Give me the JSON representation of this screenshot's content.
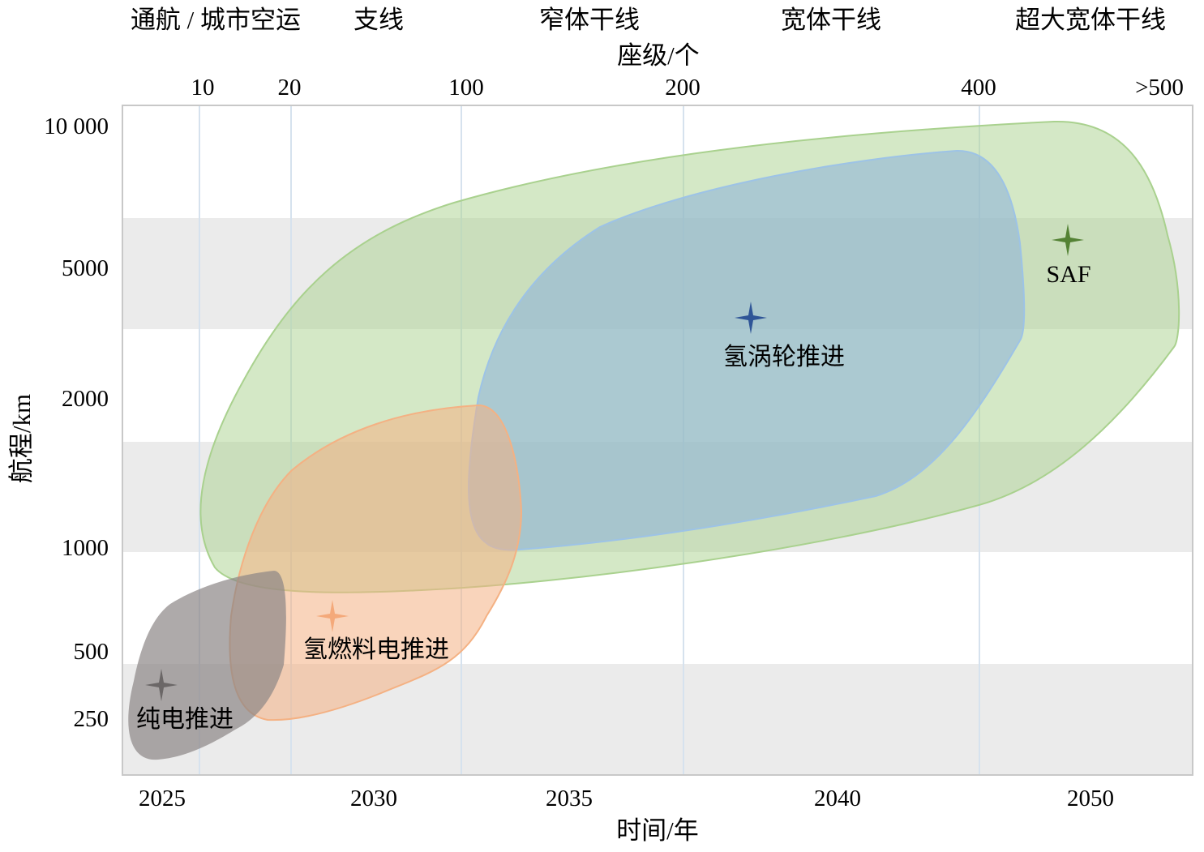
{
  "chart_data": {
    "type": "area",
    "title": "",
    "xlabel": "时间/年",
    "ylabel": "航程/km",
    "top_axis_label": "座级/个",
    "x_ticks": [
      "2025",
      "2030",
      "2035",
      "2040",
      "2050"
    ],
    "y_ticks": [
      "10 000",
      "5000",
      "2000",
      "1000",
      "500",
      "250"
    ],
    "top_ticks": [
      "10",
      "20",
      "100",
      "200",
      "400",
      ">500"
    ],
    "categories": [
      "通航 / 城市空运",
      "支线",
      "窄体干线",
      "宽体干线",
      "超大宽体干线"
    ],
    "series": [
      {
        "name": "SAF",
        "color": "#a9d18e",
        "marker_color": "#548235",
        "range_km": [
          800,
          9500
        ],
        "seats": [
          10,
          500
        ],
        "years": [
          2025,
          2052
        ]
      },
      {
        "name": "氢涡轮推进",
        "color": "#9dc3e6",
        "marker_color": "#2f5597",
        "range_km": [
          1000,
          8500
        ],
        "seats": [
          100,
          400
        ],
        "years": [
          2032,
          2048
        ]
      },
      {
        "name": "氢燃料电推进",
        "color": "#f4b183",
        "marker_color": "#f4a97a",
        "range_km": [
          250,
          2000
        ],
        "seats": [
          20,
          100
        ],
        "years": [
          2027,
          2033
        ]
      },
      {
        "name": "纯电推进",
        "color": "#8c8686",
        "marker_color": "#6b6767",
        "range_km": [
          150,
          800
        ],
        "seats": [
          0,
          20
        ],
        "years": [
          2024,
          2028
        ]
      }
    ]
  }
}
